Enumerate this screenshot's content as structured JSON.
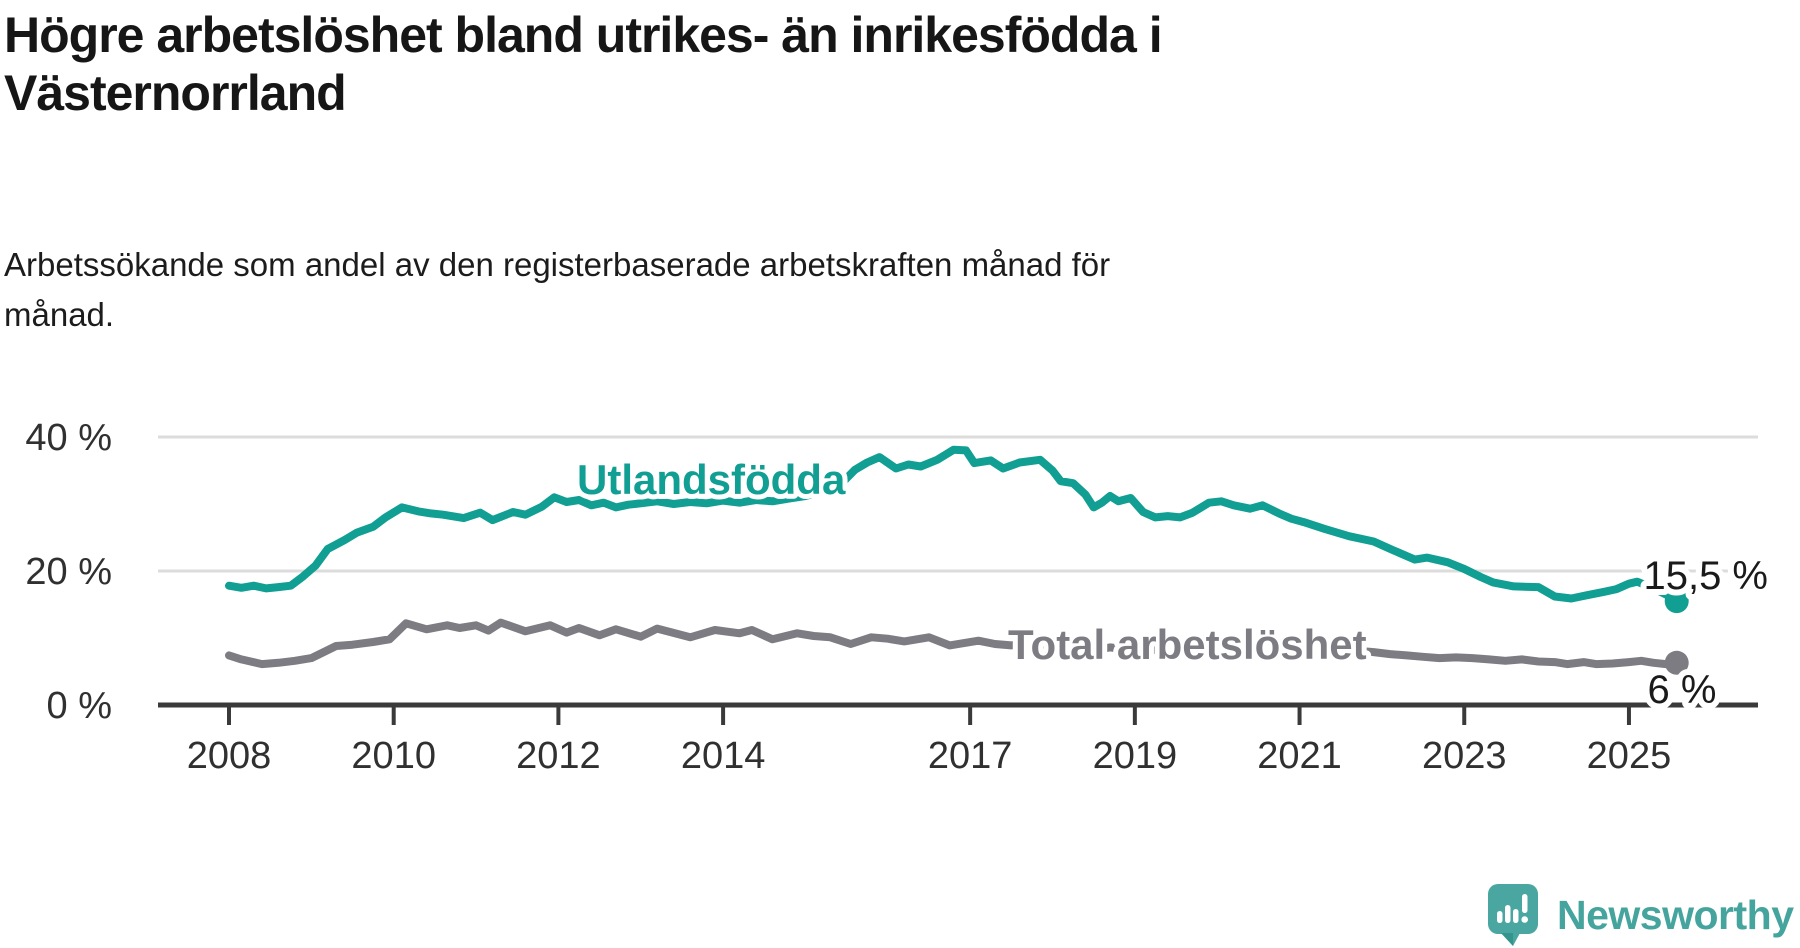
{
  "chart_data": {
    "type": "line",
    "title": "Högre arbetslöshet bland utrikes- än inrikesfödda i\nVästernorrland",
    "subtitle": "Arbetssökande som andel av den registerbaserade arbetskraften månad för\nmånad.",
    "xlabel": "",
    "ylabel": "",
    "unit": "%",
    "xlim": [
      2007.15,
      2026.55
    ],
    "ylim": [
      0,
      42
    ],
    "grid": "horizontal",
    "legend": "inline-labels",
    "x_ticks": [
      {
        "year": 2008,
        "label": "2008"
      },
      {
        "year": 2010,
        "label": "2010"
      },
      {
        "year": 2012,
        "label": "2012"
      },
      {
        "year": 2014,
        "label": "2014"
      },
      {
        "year": 2017,
        "label": "2017"
      },
      {
        "year": 2019,
        "label": "2019"
      },
      {
        "year": 2021,
        "label": "2021"
      },
      {
        "year": 2023,
        "label": "2023"
      },
      {
        "year": 2025,
        "label": "2025"
      }
    ],
    "y_ticks": [
      {
        "value": 40,
        "label": "40 %"
      },
      {
        "value": 20,
        "label": "20 %"
      },
      {
        "value": 0,
        "label": "0 %"
      }
    ],
    "colors": {
      "grid": "#dcdcdc",
      "axis": "#3a3a3a",
      "tick_text": "#303030",
      "value_label_text": "#1a1a1a"
    },
    "series": [
      {
        "name": "Utlandsfödda",
        "color": "#119e93",
        "end_label": "15,5 %",
        "end_value": 15.5,
        "points": [
          [
            2008.0,
            17.8
          ],
          [
            2008.15,
            17.5
          ],
          [
            2008.3,
            17.8
          ],
          [
            2008.45,
            17.4
          ],
          [
            2008.6,
            17.6
          ],
          [
            2008.75,
            17.8
          ],
          [
            2008.9,
            19.2
          ],
          [
            2009.05,
            20.8
          ],
          [
            2009.2,
            23.3
          ],
          [
            2009.4,
            24.6
          ],
          [
            2009.55,
            25.7
          ],
          [
            2009.75,
            26.6
          ],
          [
            2009.9,
            28.0
          ],
          [
            2010.1,
            29.5
          ],
          [
            2010.3,
            28.9
          ],
          [
            2010.45,
            28.6
          ],
          [
            2010.6,
            28.4
          ],
          [
            2010.85,
            27.9
          ],
          [
            2011.05,
            28.7
          ],
          [
            2011.2,
            27.6
          ],
          [
            2011.45,
            28.8
          ],
          [
            2011.6,
            28.4
          ],
          [
            2011.8,
            29.6
          ],
          [
            2011.95,
            31.0
          ],
          [
            2012.1,
            30.3
          ],
          [
            2012.25,
            30.6
          ],
          [
            2012.4,
            29.8
          ],
          [
            2012.55,
            30.2
          ],
          [
            2012.7,
            29.5
          ],
          [
            2012.85,
            29.9
          ],
          [
            2013.0,
            30.1
          ],
          [
            2013.2,
            30.4
          ],
          [
            2013.4,
            30.0
          ],
          [
            2013.6,
            30.3
          ],
          [
            2013.8,
            30.1
          ],
          [
            2014.0,
            30.5
          ],
          [
            2014.2,
            30.2
          ],
          [
            2014.4,
            30.6
          ],
          [
            2014.6,
            30.4
          ],
          [
            2014.8,
            30.8
          ],
          [
            2015.0,
            31.2
          ],
          [
            2015.2,
            31.8
          ],
          [
            2015.4,
            32.6
          ],
          [
            2015.6,
            35.1
          ],
          [
            2015.75,
            36.2
          ],
          [
            2015.9,
            37.0
          ],
          [
            2016.1,
            35.3
          ],
          [
            2016.25,
            35.9
          ],
          [
            2016.4,
            35.6
          ],
          [
            2016.6,
            36.6
          ],
          [
            2016.8,
            38.1
          ],
          [
            2016.95,
            38.0
          ],
          [
            2017.05,
            36.1
          ],
          [
            2017.25,
            36.5
          ],
          [
            2017.4,
            35.3
          ],
          [
            2017.6,
            36.2
          ],
          [
            2017.85,
            36.6
          ],
          [
            2018.0,
            35.0
          ],
          [
            2018.1,
            33.4
          ],
          [
            2018.25,
            33.1
          ],
          [
            2018.4,
            31.4
          ],
          [
            2018.5,
            29.5
          ],
          [
            2018.6,
            30.2
          ],
          [
            2018.7,
            31.2
          ],
          [
            2018.8,
            30.4
          ],
          [
            2018.95,
            30.9
          ],
          [
            2019.1,
            28.8
          ],
          [
            2019.25,
            28.0
          ],
          [
            2019.4,
            28.2
          ],
          [
            2019.55,
            28.0
          ],
          [
            2019.7,
            28.7
          ],
          [
            2019.9,
            30.2
          ],
          [
            2020.05,
            30.4
          ],
          [
            2020.2,
            29.8
          ],
          [
            2020.4,
            29.3
          ],
          [
            2020.55,
            29.8
          ],
          [
            2020.75,
            28.6
          ],
          [
            2020.9,
            27.8
          ],
          [
            2021.05,
            27.3
          ],
          [
            2021.3,
            26.3
          ],
          [
            2021.6,
            25.2
          ],
          [
            2021.9,
            24.4
          ],
          [
            2022.1,
            23.3
          ],
          [
            2022.4,
            21.7
          ],
          [
            2022.55,
            22.0
          ],
          [
            2022.8,
            21.3
          ],
          [
            2023.0,
            20.3
          ],
          [
            2023.2,
            19.1
          ],
          [
            2023.35,
            18.3
          ],
          [
            2023.6,
            17.7
          ],
          [
            2023.9,
            17.6
          ],
          [
            2024.1,
            16.2
          ],
          [
            2024.3,
            15.9
          ],
          [
            2024.5,
            16.4
          ],
          [
            2024.7,
            16.9
          ],
          [
            2024.85,
            17.3
          ],
          [
            2025.0,
            18.1
          ],
          [
            2025.1,
            18.4
          ],
          [
            2025.3,
            17.4
          ],
          [
            2025.45,
            16.5
          ],
          [
            2025.58,
            15.5
          ]
        ]
      },
      {
        "name": "Total arbetslöshet",
        "color": "#7c7c82",
        "end_label": "6 %",
        "end_value": 6,
        "points": [
          [
            2008.0,
            7.4
          ],
          [
            2008.15,
            6.8
          ],
          [
            2008.4,
            6.1
          ],
          [
            2008.6,
            6.3
          ],
          [
            2008.8,
            6.6
          ],
          [
            2009.0,
            7.0
          ],
          [
            2009.3,
            8.8
          ],
          [
            2009.5,
            9.0
          ],
          [
            2009.75,
            9.4
          ],
          [
            2009.95,
            9.8
          ],
          [
            2010.15,
            12.2
          ],
          [
            2010.4,
            11.3
          ],
          [
            2010.65,
            11.9
          ],
          [
            2010.8,
            11.5
          ],
          [
            2011.0,
            11.9
          ],
          [
            2011.15,
            11.1
          ],
          [
            2011.3,
            12.3
          ],
          [
            2011.6,
            11.0
          ],
          [
            2011.9,
            11.9
          ],
          [
            2012.1,
            10.8
          ],
          [
            2012.25,
            11.5
          ],
          [
            2012.5,
            10.4
          ],
          [
            2012.7,
            11.3
          ],
          [
            2013.0,
            10.2
          ],
          [
            2013.2,
            11.4
          ],
          [
            2013.6,
            10.1
          ],
          [
            2013.9,
            11.2
          ],
          [
            2014.2,
            10.7
          ],
          [
            2014.35,
            11.2
          ],
          [
            2014.6,
            9.8
          ],
          [
            2014.9,
            10.7
          ],
          [
            2015.1,
            10.3
          ],
          [
            2015.3,
            10.1
          ],
          [
            2015.55,
            9.1
          ],
          [
            2015.8,
            10.1
          ],
          [
            2016.0,
            9.9
          ],
          [
            2016.2,
            9.5
          ],
          [
            2016.5,
            10.1
          ],
          [
            2016.75,
            8.9
          ],
          [
            2017.1,
            9.6
          ],
          [
            2017.3,
            9.1
          ],
          [
            2017.5,
            8.9
          ],
          [
            2017.7,
            9.3
          ],
          [
            2017.9,
            9.0
          ],
          [
            2018.1,
            8.8
          ],
          [
            2018.3,
            8.5
          ],
          [
            2018.5,
            8.2
          ],
          [
            2018.7,
            8.6
          ],
          [
            2018.9,
            8.3
          ],
          [
            2019.1,
            8.1
          ],
          [
            2019.3,
            8.3
          ],
          [
            2019.5,
            8.2
          ],
          [
            2019.7,
            8.5
          ],
          [
            2019.9,
            8.8
          ],
          [
            2020.1,
            9.1
          ],
          [
            2020.3,
            9.7
          ],
          [
            2020.5,
            9.5
          ],
          [
            2020.7,
            9.3
          ],
          [
            2020.9,
            9.1
          ],
          [
            2021.1,
            8.9
          ],
          [
            2021.3,
            8.6
          ],
          [
            2021.5,
            8.4
          ],
          [
            2021.7,
            8.1
          ],
          [
            2021.9,
            7.9
          ],
          [
            2022.1,
            7.6
          ],
          [
            2022.3,
            7.4
          ],
          [
            2022.5,
            7.2
          ],
          [
            2022.7,
            7.0
          ],
          [
            2022.9,
            7.1
          ],
          [
            2023.1,
            7.0
          ],
          [
            2023.3,
            6.8
          ],
          [
            2023.5,
            6.6
          ],
          [
            2023.7,
            6.8
          ],
          [
            2023.9,
            6.5
          ],
          [
            2024.1,
            6.4
          ],
          [
            2024.25,
            6.1
          ],
          [
            2024.45,
            6.4
          ],
          [
            2024.6,
            6.1
          ],
          [
            2024.8,
            6.2
          ],
          [
            2025.0,
            6.4
          ],
          [
            2025.15,
            6.6
          ],
          [
            2025.3,
            6.3
          ],
          [
            2025.45,
            6.1
          ],
          [
            2025.58,
            6.3
          ]
        ]
      }
    ]
  },
  "footer": {
    "brand": "Newsworthy",
    "brand_color": "#45a49d"
  }
}
